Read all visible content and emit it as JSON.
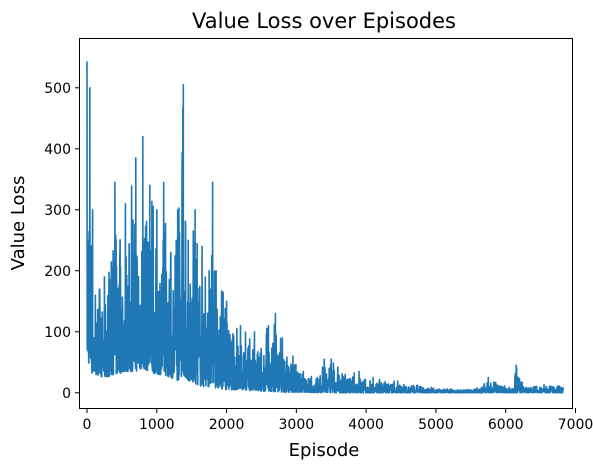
{
  "chart_data": {
    "type": "line",
    "title": "Value Loss over Episodes",
    "xlabel": "Episode",
    "ylabel": "Value Loss",
    "xlim": [
      -100,
      6950
    ],
    "ylim": [
      -25,
      580
    ],
    "xticks": [
      0,
      1000,
      2000,
      3000,
      4000,
      5000,
      6000,
      7000
    ],
    "yticks": [
      0,
      100,
      200,
      300,
      400,
      500
    ],
    "grid": false,
    "legend": "none",
    "series_color": "#1f77b4",
    "x_count": 6830,
    "envelope": [
      [
        0,
        60,
        555
      ],
      [
        40,
        40,
        500
      ],
      [
        80,
        30,
        300
      ],
      [
        120,
        30,
        160
      ],
      [
        250,
        25,
        190
      ],
      [
        400,
        30,
        345
      ],
      [
        550,
        35,
        310
      ],
      [
        700,
        35,
        385
      ],
      [
        800,
        40,
        420
      ],
      [
        900,
        35,
        340
      ],
      [
        1000,
        30,
        300
      ],
      [
        1100,
        30,
        345
      ],
      [
        1200,
        25,
        230
      ],
      [
        1300,
        20,
        300
      ],
      [
        1380,
        30,
        505
      ],
      [
        1450,
        20,
        250
      ],
      [
        1550,
        15,
        300
      ],
      [
        1650,
        10,
        240
      ],
      [
        1750,
        10,
        200
      ],
      [
        1800,
        10,
        345
      ],
      [
        1850,
        8,
        200
      ],
      [
        2000,
        5,
        150
      ],
      [
        2200,
        5,
        110
      ],
      [
        2400,
        3,
        100
      ],
      [
        2600,
        2,
        110
      ],
      [
        2700,
        2,
        130
      ],
      [
        2800,
        1,
        90
      ],
      [
        2950,
        1,
        60
      ],
      [
        3100,
        1,
        35
      ],
      [
        3300,
        0,
        25
      ],
      [
        3400,
        0,
        55
      ],
      [
        3500,
        0,
        55
      ],
      [
        3700,
        0,
        30
      ],
      [
        3900,
        0,
        35
      ],
      [
        4100,
        0,
        25
      ],
      [
        4300,
        0,
        20
      ],
      [
        4500,
        0,
        20
      ],
      [
        4700,
        0,
        15
      ],
      [
        5000,
        0,
        8
      ],
      [
        5300,
        0,
        6
      ],
      [
        5600,
        0,
        8
      ],
      [
        5750,
        0,
        25
      ],
      [
        5900,
        0,
        15
      ],
      [
        6100,
        0,
        8
      ],
      [
        6150,
        0,
        45
      ],
      [
        6250,
        0,
        15
      ],
      [
        6400,
        0,
        10
      ],
      [
        6600,
        0,
        15
      ],
      [
        6830,
        0,
        10
      ]
    ]
  }
}
